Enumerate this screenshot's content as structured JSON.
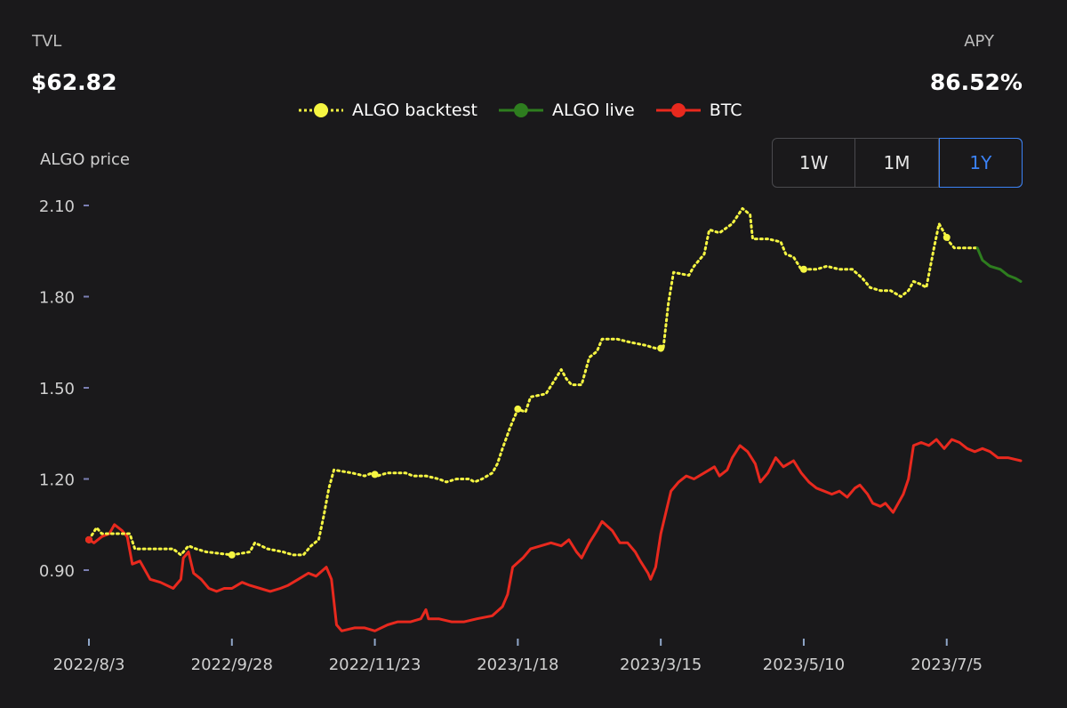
{
  "stats": {
    "tvl_label": "TVL",
    "tvl_value": "$62.82",
    "apy_label": "APY",
    "apy_value": "86.52%"
  },
  "legend": [
    {
      "label": "ALGO backtest",
      "color": "#f5f542",
      "style": "dotted"
    },
    {
      "label": "ALGO live",
      "color": "#2e7d1f",
      "style": "solid"
    },
    {
      "label": "BTC",
      "color": "#e8291e",
      "style": "solid"
    }
  ],
  "range_buttons": [
    {
      "label": "1W",
      "active": false
    },
    {
      "label": "1M",
      "active": false
    },
    {
      "label": "1Y",
      "active": true
    }
  ],
  "chart_data": {
    "type": "line",
    "ylabel": "ALGO price",
    "y_ticks": [
      "2.10",
      "1.80",
      "1.50",
      "1.20",
      "0.90"
    ],
    "y_tick_values": [
      2.1,
      1.8,
      1.5,
      1.2,
      0.9
    ],
    "ylim": [
      0.67,
      2.1
    ],
    "x_ticks": [
      "2022/8/3",
      "2022/9/28",
      "2022/11/23",
      "2023/1/18",
      "2023/3/15",
      "2023/5/10",
      "2023/7/5"
    ],
    "x_tick_days": [
      0,
      56,
      112,
      168,
      224,
      280,
      336
    ],
    "x_range_days": [
      0,
      365
    ],
    "grid": false,
    "legend_position": "top-center",
    "series": [
      {
        "name": "ALGO backtest",
        "color": "#f5f542",
        "style": "dotted",
        "points": [
          [
            0,
            1.0
          ],
          [
            3,
            1.04
          ],
          [
            5,
            1.02
          ],
          [
            9,
            1.02
          ],
          [
            16,
            1.02
          ],
          [
            18,
            0.97
          ],
          [
            33,
            0.97
          ],
          [
            36,
            0.95
          ],
          [
            39,
            0.98
          ],
          [
            42,
            0.97
          ],
          [
            46,
            0.96
          ],
          [
            56,
            0.95
          ],
          [
            63,
            0.96
          ],
          [
            65,
            0.99
          ],
          [
            70,
            0.97
          ],
          [
            76,
            0.96
          ],
          [
            80,
            0.95
          ],
          [
            84,
            0.95
          ],
          [
            87,
            0.98
          ],
          [
            90,
            1.0
          ],
          [
            92,
            1.08
          ],
          [
            94,
            1.17
          ],
          [
            96,
            1.23
          ],
          [
            103,
            1.22
          ],
          [
            108,
            1.21
          ],
          [
            111,
            1.22
          ],
          [
            113,
            1.21
          ],
          [
            117,
            1.22
          ],
          [
            124,
            1.22
          ],
          [
            127,
            1.21
          ],
          [
            132,
            1.21
          ],
          [
            137,
            1.2
          ],
          [
            140,
            1.19
          ],
          [
            144,
            1.2
          ],
          [
            149,
            1.2
          ],
          [
            151,
            1.19
          ],
          [
            154,
            1.2
          ],
          [
            158,
            1.22
          ],
          [
            160,
            1.25
          ],
          [
            162,
            1.3
          ],
          [
            165,
            1.37
          ],
          [
            168,
            1.43
          ],
          [
            171,
            1.42
          ],
          [
            173,
            1.47
          ],
          [
            179,
            1.48
          ],
          [
            182,
            1.52
          ],
          [
            185,
            1.56
          ],
          [
            187,
            1.53
          ],
          [
            189,
            1.51
          ],
          [
            193,
            1.51
          ],
          [
            196,
            1.6
          ],
          [
            199,
            1.62
          ],
          [
            201,
            1.66
          ],
          [
            207,
            1.66
          ],
          [
            212,
            1.65
          ],
          [
            218,
            1.64
          ],
          [
            222,
            1.63
          ],
          [
            225,
            1.63
          ],
          [
            227,
            1.78
          ],
          [
            229,
            1.88
          ],
          [
            235,
            1.87
          ],
          [
            237,
            1.9
          ],
          [
            241,
            1.94
          ],
          [
            243,
            2.02
          ],
          [
            247,
            2.01
          ],
          [
            252,
            2.04
          ],
          [
            256,
            2.09
          ],
          [
            259,
            2.07
          ],
          [
            260,
            1.99
          ],
          [
            266,
            1.99
          ],
          [
            271,
            1.98
          ],
          [
            273,
            1.94
          ],
          [
            276,
            1.93
          ],
          [
            279,
            1.89
          ],
          [
            285,
            1.89
          ],
          [
            289,
            1.9
          ],
          [
            294,
            1.89
          ],
          [
            299,
            1.89
          ],
          [
            303,
            1.86
          ],
          [
            306,
            1.83
          ],
          [
            310,
            1.82
          ],
          [
            314,
            1.82
          ],
          [
            318,
            1.8
          ],
          [
            321,
            1.82
          ],
          [
            323,
            1.85
          ],
          [
            326,
            1.84
          ],
          [
            328,
            1.83
          ],
          [
            331,
            1.96
          ],
          [
            333,
            2.04
          ],
          [
            335,
            2.01
          ],
          [
            337,
            1.98
          ],
          [
            339,
            1.96
          ],
          [
            348,
            1.96
          ]
        ]
      },
      {
        "name": "ALGO live",
        "color": "#2e7d1f",
        "style": "solid",
        "points": [
          [
            348,
            1.96
          ],
          [
            350,
            1.92
          ],
          [
            353,
            1.9
          ],
          [
            357,
            1.89
          ],
          [
            360,
            1.87
          ],
          [
            363,
            1.86
          ],
          [
            365,
            1.85
          ]
        ]
      },
      {
        "name": "BTC",
        "color": "#e8291e",
        "style": "solid",
        "points": [
          [
            0,
            1.0
          ],
          [
            2,
            0.99
          ],
          [
            5,
            1.01
          ],
          [
            8,
            1.02
          ],
          [
            10,
            1.05
          ],
          [
            13,
            1.03
          ],
          [
            15,
            1.01
          ],
          [
            17,
            0.92
          ],
          [
            20,
            0.93
          ],
          [
            24,
            0.87
          ],
          [
            28,
            0.86
          ],
          [
            33,
            0.84
          ],
          [
            36,
            0.87
          ],
          [
            37,
            0.94
          ],
          [
            39,
            0.96
          ],
          [
            41,
            0.89
          ],
          [
            44,
            0.87
          ],
          [
            47,
            0.84
          ],
          [
            50,
            0.83
          ],
          [
            53,
            0.84
          ],
          [
            56,
            0.84
          ],
          [
            60,
            0.86
          ],
          [
            63,
            0.85
          ],
          [
            67,
            0.84
          ],
          [
            71,
            0.83
          ],
          [
            75,
            0.84
          ],
          [
            78,
            0.85
          ],
          [
            82,
            0.87
          ],
          [
            86,
            0.89
          ],
          [
            89,
            0.88
          ],
          [
            93,
            0.91
          ],
          [
            95,
            0.87
          ],
          [
            97,
            0.72
          ],
          [
            99,
            0.7
          ],
          [
            104,
            0.71
          ],
          [
            108,
            0.71
          ],
          [
            112,
            0.7
          ],
          [
            117,
            0.72
          ],
          [
            121,
            0.73
          ],
          [
            126,
            0.73
          ],
          [
            130,
            0.74
          ],
          [
            132,
            0.77
          ],
          [
            133,
            0.74
          ],
          [
            137,
            0.74
          ],
          [
            142,
            0.73
          ],
          [
            147,
            0.73
          ],
          [
            152,
            0.74
          ],
          [
            158,
            0.75
          ],
          [
            162,
            0.78
          ],
          [
            164,
            0.82
          ],
          [
            166,
            0.91
          ],
          [
            170,
            0.94
          ],
          [
            173,
            0.97
          ],
          [
            177,
            0.98
          ],
          [
            181,
            0.99
          ],
          [
            185,
            0.98
          ],
          [
            188,
            1.0
          ],
          [
            191,
            0.96
          ],
          [
            193,
            0.94
          ],
          [
            196,
            0.99
          ],
          [
            199,
            1.03
          ],
          [
            201,
            1.06
          ],
          [
            205,
            1.03
          ],
          [
            208,
            0.99
          ],
          [
            211,
            0.99
          ],
          [
            214,
            0.96
          ],
          [
            216,
            0.93
          ],
          [
            219,
            0.89
          ],
          [
            220,
            0.87
          ],
          [
            222,
            0.91
          ],
          [
            224,
            1.02
          ],
          [
            226,
            1.09
          ],
          [
            228,
            1.16
          ],
          [
            231,
            1.19
          ],
          [
            234,
            1.21
          ],
          [
            237,
            1.2
          ],
          [
            241,
            1.22
          ],
          [
            245,
            1.24
          ],
          [
            247,
            1.21
          ],
          [
            250,
            1.23
          ],
          [
            252,
            1.27
          ],
          [
            255,
            1.31
          ],
          [
            258,
            1.29
          ],
          [
            261,
            1.25
          ],
          [
            263,
            1.19
          ],
          [
            266,
            1.22
          ],
          [
            269,
            1.27
          ],
          [
            272,
            1.24
          ],
          [
            276,
            1.26
          ],
          [
            279,
            1.22
          ],
          [
            282,
            1.19
          ],
          [
            285,
            1.17
          ],
          [
            288,
            1.16
          ],
          [
            291,
            1.15
          ],
          [
            294,
            1.16
          ],
          [
            297,
            1.14
          ],
          [
            300,
            1.17
          ],
          [
            302,
            1.18
          ],
          [
            305,
            1.15
          ],
          [
            307,
            1.12
          ],
          [
            310,
            1.11
          ],
          [
            312,
            1.12
          ],
          [
            315,
            1.09
          ],
          [
            317,
            1.12
          ],
          [
            319,
            1.15
          ],
          [
            321,
            1.2
          ],
          [
            323,
            1.31
          ],
          [
            326,
            1.32
          ],
          [
            329,
            1.31
          ],
          [
            332,
            1.33
          ],
          [
            335,
            1.3
          ],
          [
            338,
            1.33
          ],
          [
            341,
            1.32
          ],
          [
            344,
            1.3
          ],
          [
            347,
            1.29
          ],
          [
            350,
            1.3
          ],
          [
            353,
            1.29
          ],
          [
            356,
            1.27
          ],
          [
            360,
            1.27
          ],
          [
            365,
            1.26
          ]
        ]
      }
    ]
  }
}
